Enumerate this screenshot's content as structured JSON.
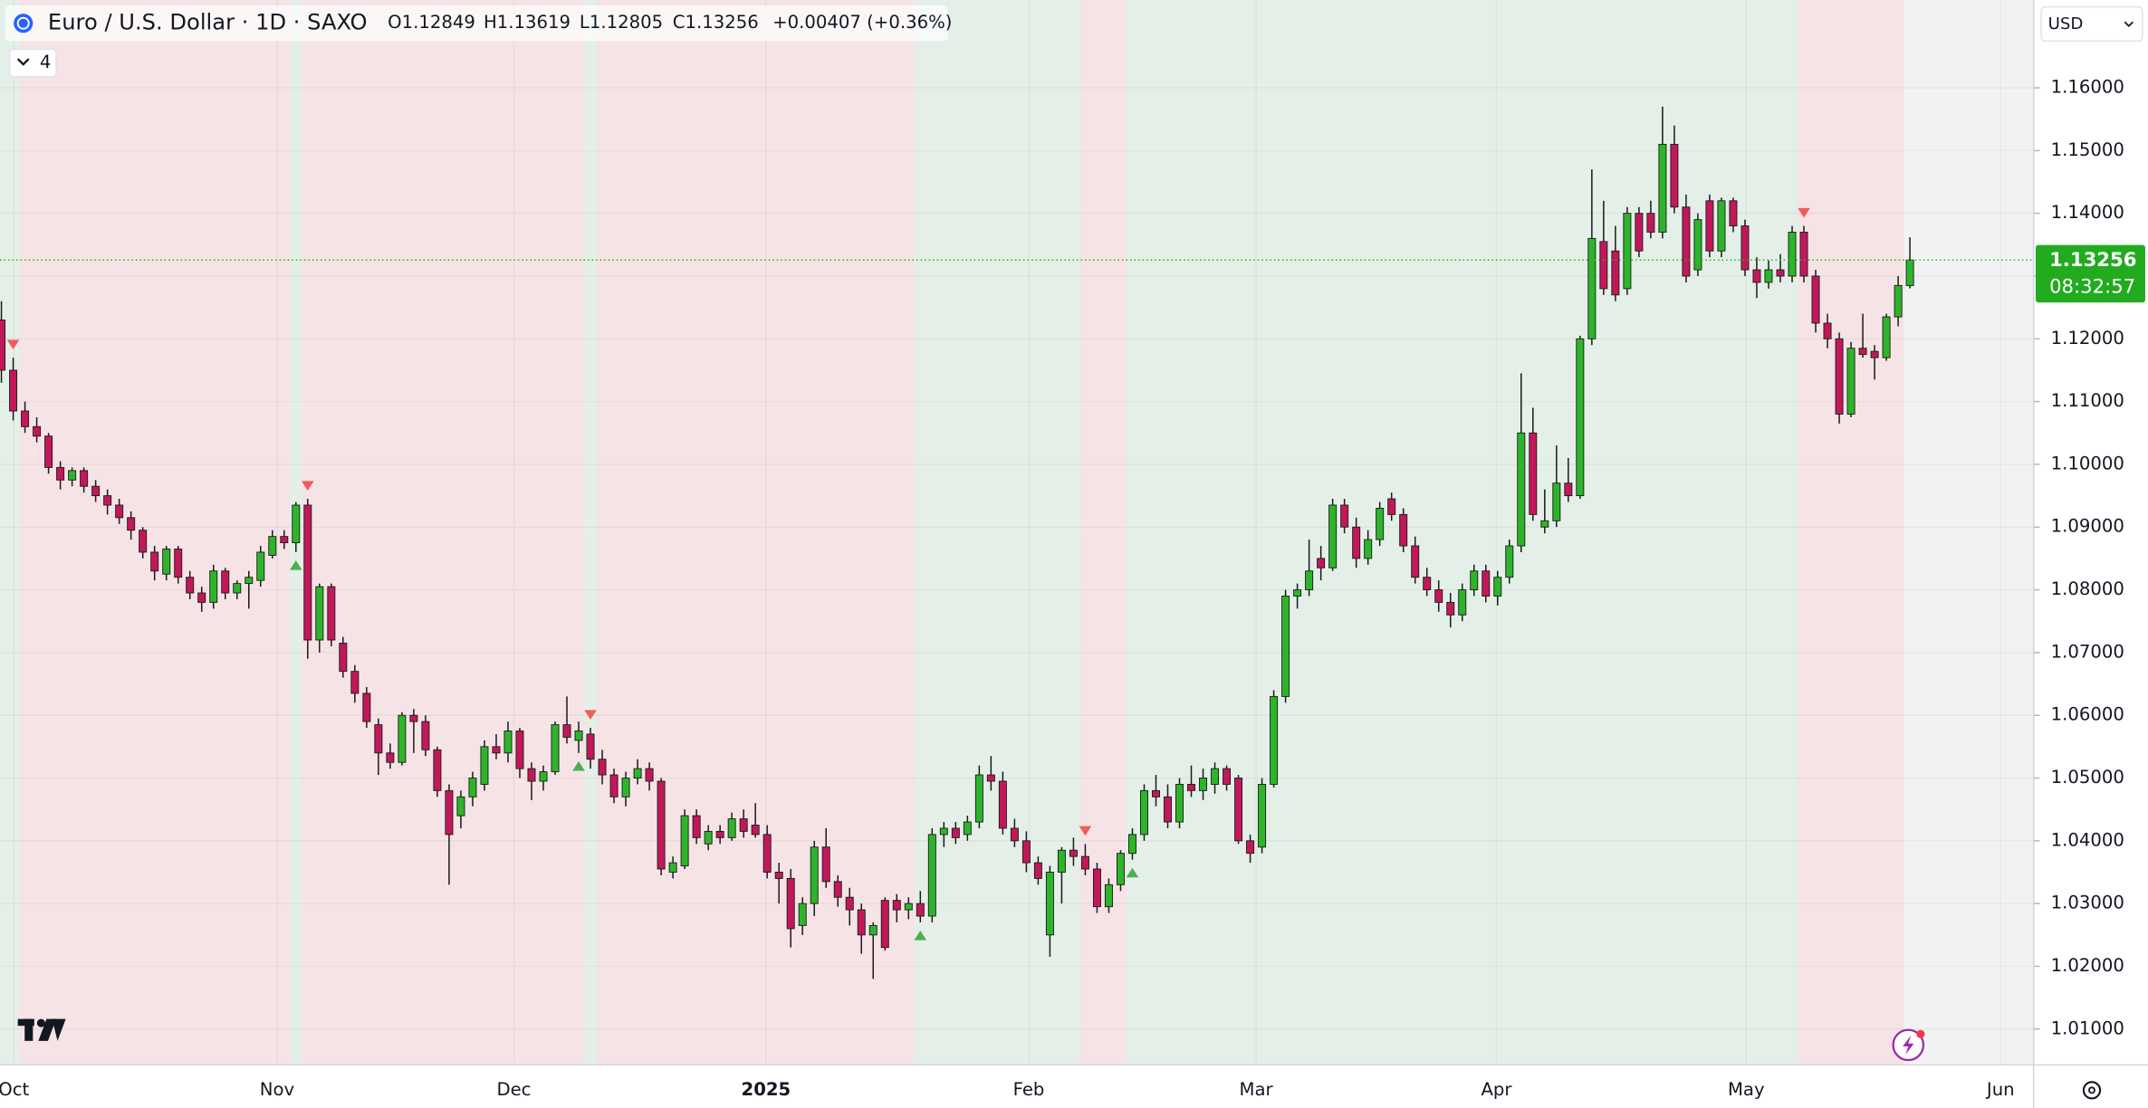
{
  "header": {
    "title": "Euro / U.S. Dollar · 1D · SAXO",
    "ohlc": [
      "O1.12849",
      "H1.13619",
      "L1.12805",
      "C1.13256"
    ],
    "change": "+0.00407 (+0.36%)",
    "indicators": "4",
    "currency": "USD",
    "countdown": "08:32:57"
  },
  "chart_data": {
    "type": "candlestick",
    "up_color": "#2db52a",
    "down_color": "#c2185b",
    "wick_color": "#1b1b1b",
    "xlim": [
      -0.12,
      172.44
    ],
    "ylim": [
      1.0044,
      1.174
    ],
    "grid": true,
    "yticks": [
      {
        "value": 1.01,
        "label": "1.01000"
      },
      {
        "value": 1.02,
        "label": "1.02000"
      },
      {
        "value": 1.03,
        "label": "1.03000"
      },
      {
        "value": 1.04,
        "label": "1.04000"
      },
      {
        "value": 1.05,
        "label": "1.05000"
      },
      {
        "value": 1.06,
        "label": "1.06000"
      },
      {
        "value": 1.07,
        "label": "1.07000"
      },
      {
        "value": 1.08,
        "label": "1.08000"
      },
      {
        "value": 1.09,
        "label": "1.09000"
      },
      {
        "value": 1.1,
        "label": "1.10000"
      },
      {
        "value": 1.11,
        "label": "1.11000"
      },
      {
        "value": 1.12,
        "label": "1.12000"
      },
      {
        "value": 1.13,
        "label": "1.13000"
      },
      {
        "value": 1.14,
        "label": "1.14000"
      },
      {
        "value": 1.15,
        "label": "1.15000"
      },
      {
        "value": 1.16,
        "label": "1.16000"
      }
    ],
    "xticks": [
      {
        "value": 1.05,
        "label": "Oct"
      },
      {
        "value": 23.4,
        "label": "Nov"
      },
      {
        "value": 43.5,
        "label": "Dec"
      },
      {
        "value": 64.9,
        "label": "2025"
      },
      {
        "value": 87.2,
        "label": "Feb"
      },
      {
        "value": 106.5,
        "label": "Mar"
      },
      {
        "value": 126.9,
        "label": "Apr"
      },
      {
        "value": 148.1,
        "label": "May"
      },
      {
        "value": 169.7,
        "label": "Jun"
      }
    ],
    "last_price": {
      "value": 1.13256,
      "label": "1.13256"
    },
    "zones": [
      {
        "start": -0.5,
        "end": 1.5,
        "color": "#e4efe7"
      },
      {
        "start": 1.5,
        "end": 24.5,
        "color": "#f5e3e5"
      },
      {
        "start": 24.5,
        "end": 25.5,
        "color": "#e4efe7"
      },
      {
        "start": 25.5,
        "end": 49.5,
        "color": "#f5e3e5"
      },
      {
        "start": 49.5,
        "end": 50.5,
        "color": "#e4efe7"
      },
      {
        "start": 50.5,
        "end": 77.5,
        "color": "#f5e3e5"
      },
      {
        "start": 77.5,
        "end": 91.5,
        "color": "#e4efe7"
      },
      {
        "start": 91.5,
        "end": 95.5,
        "color": "#f5e3e5"
      },
      {
        "start": 95.5,
        "end": 152.5,
        "color": "#e4efe7"
      },
      {
        "start": 152.5,
        "end": 161.5,
        "color": "#f5e3e5"
      }
    ],
    "sell_signals": [
      1,
      26,
      50,
      92,
      153
    ],
    "buy_signals": [
      25,
      49,
      78,
      96
    ],
    "candles": [
      [
        1.123,
        1.126,
        1.113,
        1.115
      ],
      [
        1.115,
        1.117,
        1.107,
        1.1085
      ],
      [
        1.1085,
        1.11,
        1.105,
        1.106
      ],
      [
        1.106,
        1.1075,
        1.1035,
        1.1045
      ],
      [
        1.1045,
        1.105,
        1.0985,
        1.0995
      ],
      [
        1.0995,
        1.1005,
        1.096,
        1.0975
      ],
      [
        1.0975,
        1.0995,
        1.0965,
        1.099
      ],
      [
        1.099,
        1.0995,
        1.0955,
        1.0965
      ],
      [
        1.0965,
        1.0975,
        1.094,
        1.095
      ],
      [
        1.095,
        1.096,
        1.092,
        1.0935
      ],
      [
        1.0935,
        1.0945,
        1.0905,
        1.0915
      ],
      [
        1.0915,
        1.0925,
        1.088,
        1.0895
      ],
      [
        1.0895,
        1.09,
        1.085,
        1.086
      ],
      [
        1.086,
        1.087,
        1.0815,
        1.083
      ],
      [
        1.0825,
        1.087,
        1.0815,
        1.0865
      ],
      [
        1.0865,
        1.087,
        1.081,
        1.082
      ],
      [
        1.082,
        1.083,
        1.0785,
        1.0795
      ],
      [
        1.0795,
        1.0805,
        1.0765,
        1.078
      ],
      [
        1.078,
        1.084,
        1.077,
        1.083
      ],
      [
        1.083,
        1.0835,
        1.0785,
        1.0795
      ],
      [
        1.0795,
        1.0815,
        1.0785,
        1.081
      ],
      [
        1.081,
        1.083,
        1.077,
        1.082
      ],
      [
        1.0815,
        1.087,
        1.0805,
        1.086
      ],
      [
        1.0855,
        1.0895,
        1.085,
        1.0885
      ],
      [
        1.0885,
        1.0895,
        1.0865,
        1.0875
      ],
      [
        1.0875,
        1.094,
        1.086,
        1.0935
      ],
      [
        1.0935,
        1.0945,
        1.069,
        1.072
      ],
      [
        1.072,
        1.081,
        1.07,
        1.0805
      ],
      [
        1.0805,
        1.081,
        1.071,
        1.072
      ],
      [
        1.0715,
        1.0725,
        1.066,
        1.067
      ],
      [
        1.067,
        1.068,
        1.062,
        1.0635
      ],
      [
        1.0635,
        1.0645,
        1.058,
        1.059
      ],
      [
        1.0585,
        1.0595,
        1.0505,
        1.054
      ],
      [
        1.054,
        1.0555,
        1.0515,
        1.0525
      ],
      [
        1.0525,
        1.0605,
        1.052,
        1.06
      ],
      [
        1.06,
        1.061,
        1.054,
        1.059
      ],
      [
        1.059,
        1.06,
        1.0535,
        1.0545
      ],
      [
        1.0545,
        1.055,
        1.047,
        1.048
      ],
      [
        1.048,
        1.049,
        1.033,
        1.041
      ],
      [
        1.044,
        1.048,
        1.042,
        1.047
      ],
      [
        1.047,
        1.051,
        1.0455,
        1.05
      ],
      [
        1.049,
        1.056,
        1.048,
        1.055
      ],
      [
        1.055,
        1.057,
        1.053,
        1.054
      ],
      [
        1.054,
        1.059,
        1.0525,
        1.0575
      ],
      [
        1.0575,
        1.058,
        1.05,
        1.0515
      ],
      [
        1.0515,
        1.0525,
        1.0465,
        1.0495
      ],
      [
        1.0495,
        1.052,
        1.048,
        1.051
      ],
      [
        1.051,
        1.059,
        1.0505,
        1.0585
      ],
      [
        1.0585,
        1.063,
        1.0555,
        1.0565
      ],
      [
        1.056,
        1.059,
        1.054,
        1.0575
      ],
      [
        1.057,
        1.058,
        1.0515,
        1.053
      ],
      [
        1.053,
        1.0545,
        1.049,
        1.0505
      ],
      [
        1.0505,
        1.0515,
        1.046,
        1.047
      ],
      [
        1.047,
        1.051,
        1.0455,
        1.05
      ],
      [
        1.05,
        1.053,
        1.049,
        1.0515
      ],
      [
        1.0515,
        1.0525,
        1.048,
        1.0495
      ],
      [
        1.0495,
        1.05,
        1.0345,
        1.0355
      ],
      [
        1.035,
        1.0375,
        1.034,
        1.0365
      ],
      [
        1.036,
        1.045,
        1.0355,
        1.044
      ],
      [
        1.044,
        1.045,
        1.0395,
        1.0405
      ],
      [
        1.0395,
        1.0425,
        1.0385,
        1.0415
      ],
      [
        1.0415,
        1.0425,
        1.0395,
        1.0405
      ],
      [
        1.0405,
        1.0445,
        1.04,
        1.0435
      ],
      [
        1.0435,
        1.045,
        1.0405,
        1.0415
      ],
      [
        1.0425,
        1.046,
        1.0405,
        1.041
      ],
      [
        1.041,
        1.0425,
        1.034,
        1.035
      ],
      [
        1.035,
        1.0365,
        1.03,
        1.034
      ],
      [
        1.034,
        1.0355,
        1.023,
        1.026
      ],
      [
        1.0265,
        1.031,
        1.025,
        1.03
      ],
      [
        1.03,
        1.04,
        1.028,
        1.039
      ],
      [
        1.039,
        1.042,
        1.0325,
        1.0335
      ],
      [
        1.0335,
        1.0345,
        1.0295,
        1.031
      ],
      [
        1.031,
        1.0325,
        1.0265,
        1.029
      ],
      [
        1.029,
        1.03,
        1.022,
        1.025
      ],
      [
        1.025,
        1.027,
        1.018,
        1.0265
      ],
      [
        1.0305,
        1.031,
        1.0225,
        1.023
      ],
      [
        1.0305,
        1.0315,
        1.027,
        1.029
      ],
      [
        1.029,
        1.031,
        1.0275,
        1.03
      ],
      [
        1.03,
        1.032,
        1.027,
        1.028
      ],
      [
        1.028,
        1.042,
        1.027,
        1.041
      ],
      [
        1.041,
        1.043,
        1.039,
        1.042
      ],
      [
        1.042,
        1.043,
        1.0395,
        1.0405
      ],
      [
        1.041,
        1.044,
        1.04,
        1.043
      ],
      [
        1.043,
        1.052,
        1.042,
        1.0505
      ],
      [
        1.0505,
        1.0535,
        1.048,
        1.0495
      ],
      [
        1.0495,
        1.051,
        1.041,
        1.042
      ],
      [
        1.042,
        1.0435,
        1.039,
        1.04
      ],
      [
        1.04,
        1.0415,
        1.035,
        1.0365
      ],
      [
        1.0365,
        1.0375,
        1.033,
        1.034
      ],
      [
        1.025,
        1.036,
        1.0215,
        1.035
      ],
      [
        1.035,
        1.039,
        1.03,
        1.0385
      ],
      [
        1.0385,
        1.0405,
        1.036,
        1.0375
      ],
      [
        1.0375,
        1.0395,
        1.0345,
        1.0355
      ],
      [
        1.0355,
        1.0365,
        1.0285,
        1.0295
      ],
      [
        1.0295,
        1.034,
        1.0285,
        1.033
      ],
      [
        1.033,
        1.0385,
        1.032,
        1.038
      ],
      [
        1.038,
        1.042,
        1.037,
        1.041
      ],
      [
        1.041,
        1.049,
        1.04,
        1.048
      ],
      [
        1.048,
        1.0505,
        1.0455,
        1.047
      ],
      [
        1.047,
        1.049,
        1.042,
        1.043
      ],
      [
        1.043,
        1.05,
        1.042,
        1.049
      ],
      [
        1.049,
        1.052,
        1.047,
        1.048
      ],
      [
        1.048,
        1.0515,
        1.0465,
        1.05
      ],
      [
        1.049,
        1.0525,
        1.0475,
        1.0515
      ],
      [
        1.0515,
        1.052,
        1.048,
        1.049
      ],
      [
        1.05,
        1.0505,
        1.0395,
        1.04
      ],
      [
        1.04,
        1.041,
        1.0365,
        1.038
      ],
      [
        1.039,
        1.05,
        1.038,
        1.049
      ],
      [
        1.049,
        1.064,
        1.0485,
        1.063
      ],
      [
        1.063,
        1.08,
        1.062,
        1.079
      ],
      [
        1.079,
        1.081,
        1.077,
        1.08
      ],
      [
        1.08,
        1.088,
        1.079,
        1.083
      ],
      [
        1.085,
        1.087,
        1.0815,
        1.0835
      ],
      [
        1.0835,
        1.0945,
        1.083,
        1.0935
      ],
      [
        1.0935,
        1.0945,
        1.089,
        1.09
      ],
      [
        1.09,
        1.0915,
        1.0835,
        1.085
      ],
      [
        1.085,
        1.0895,
        1.084,
        1.088
      ],
      [
        1.088,
        1.094,
        1.087,
        1.093
      ],
      [
        1.0945,
        1.0955,
        1.091,
        1.092
      ],
      [
        1.092,
        1.093,
        1.086,
        1.087
      ],
      [
        1.087,
        1.0885,
        1.081,
        1.082
      ],
      [
        1.082,
        1.0835,
        1.079,
        1.08
      ],
      [
        1.08,
        1.0815,
        1.0765,
        1.078
      ],
      [
        1.078,
        1.0795,
        1.074,
        1.076
      ],
      [
        1.076,
        1.081,
        1.075,
        1.08
      ],
      [
        1.08,
        1.084,
        1.079,
        1.083
      ],
      [
        1.083,
        1.084,
        1.078,
        1.079
      ],
      [
        1.079,
        1.083,
        1.0775,
        1.082
      ],
      [
        1.082,
        1.088,
        1.081,
        1.087
      ],
      [
        1.087,
        1.1145,
        1.086,
        1.105
      ],
      [
        1.105,
        1.109,
        1.091,
        1.092
      ],
      [
        1.09,
        1.096,
        1.089,
        1.091
      ],
      [
        1.091,
        1.103,
        1.09,
        1.097
      ],
      [
        1.097,
        1.101,
        1.094,
        1.095
      ],
      [
        1.095,
        1.1205,
        1.0945,
        1.12
      ],
      [
        1.12,
        1.147,
        1.119,
        1.136
      ],
      [
        1.1355,
        1.142,
        1.127,
        1.128
      ],
      [
        1.134,
        1.138,
        1.126,
        1.127
      ],
      [
        1.128,
        1.141,
        1.127,
        1.14
      ],
      [
        1.14,
        1.141,
        1.133,
        1.134
      ],
      [
        1.14,
        1.142,
        1.136,
        1.137
      ],
      [
        1.137,
        1.157,
        1.136,
        1.151
      ],
      [
        1.151,
        1.154,
        1.14,
        1.141
      ],
      [
        1.141,
        1.143,
        1.129,
        1.13
      ],
      [
        1.131,
        1.14,
        1.13,
        1.139
      ],
      [
        1.142,
        1.143,
        1.133,
        1.134
      ],
      [
        1.134,
        1.1425,
        1.133,
        1.142
      ],
      [
        1.142,
        1.1425,
        1.137,
        1.138
      ],
      [
        1.138,
        1.139,
        1.13,
        1.131
      ],
      [
        1.131,
        1.133,
        1.1265,
        1.129
      ],
      [
        1.129,
        1.1325,
        1.128,
        1.131
      ],
      [
        1.131,
        1.1335,
        1.129,
        1.13
      ],
      [
        1.13,
        1.138,
        1.129,
        1.137
      ],
      [
        1.137,
        1.138,
        1.129,
        1.13
      ],
      [
        1.13,
        1.131,
        1.121,
        1.1225
      ],
      [
        1.1225,
        1.124,
        1.1185,
        1.12
      ],
      [
        1.12,
        1.121,
        1.1065,
        1.108
      ],
      [
        1.108,
        1.1195,
        1.1075,
        1.1185
      ],
      [
        1.1185,
        1.124,
        1.117,
        1.1175
      ],
      [
        1.118,
        1.119,
        1.1135,
        1.117
      ],
      [
        1.117,
        1.124,
        1.1165,
        1.1235
      ],
      [
        1.1235,
        1.13,
        1.122,
        1.1285
      ],
      [
        1.12849,
        1.13619,
        1.12805,
        1.13256
      ]
    ]
  }
}
